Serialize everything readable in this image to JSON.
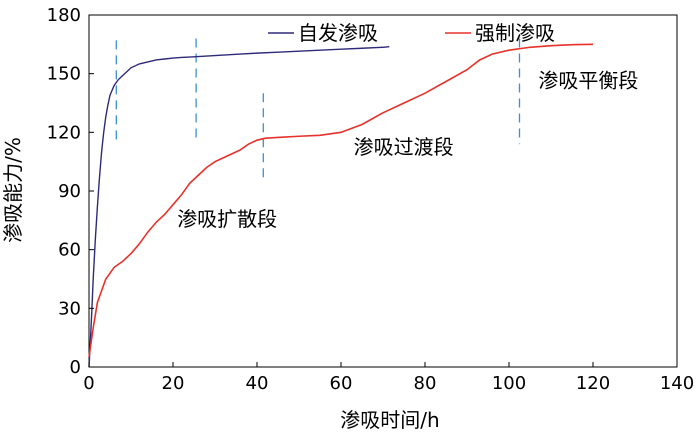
{
  "chart_data": {
    "type": "line",
    "title": "",
    "xlabel": "渗吸时间/h",
    "ylabel": "渗吸能力/%",
    "xlim": [
      0,
      140
    ],
    "ylim": [
      0,
      180
    ],
    "x_ticks": [
      "0",
      "20",
      "40",
      "60",
      "80",
      "100",
      "120",
      "140"
    ],
    "y_ticks": [
      "0",
      "30",
      "60",
      "90",
      "120",
      "150",
      "180"
    ],
    "grid": false,
    "legend_position": "top",
    "series": [
      {
        "name": "自发渗吸",
        "color": "#2e2a7a",
        "points": [
          [
            0,
            0
          ],
          [
            0.3,
            12
          ],
          [
            0.7,
            30
          ],
          [
            1,
            45
          ],
          [
            1.5,
            65
          ],
          [
            2,
            82
          ],
          [
            2.5,
            97
          ],
          [
            3,
            110
          ],
          [
            3.5,
            120
          ],
          [
            4,
            128
          ],
          [
            4.5,
            134
          ],
          [
            5,
            139
          ],
          [
            6,
            144
          ],
          [
            7,
            147
          ],
          [
            8,
            149
          ],
          [
            9,
            151
          ],
          [
            10,
            153
          ],
          [
            12,
            155
          ],
          [
            14,
            156
          ],
          [
            16,
            157
          ],
          [
            18,
            157.5
          ],
          [
            20,
            158
          ],
          [
            22,
            158.3
          ],
          [
            25,
            158.6
          ],
          [
            28,
            159
          ],
          [
            32,
            159.5
          ],
          [
            36,
            160
          ],
          [
            40,
            160.5
          ],
          [
            45,
            161
          ],
          [
            50,
            161.5
          ],
          [
            55,
            162
          ],
          [
            60,
            162.5
          ],
          [
            65,
            163
          ],
          [
            70,
            163.5
          ],
          [
            71.5,
            163.8
          ]
        ]
      },
      {
        "name": "强制渗吸",
        "color": "#e8312a",
        "points": [
          [
            0,
            5
          ],
          [
            1,
            20
          ],
          [
            2,
            33
          ],
          [
            4,
            45
          ],
          [
            6,
            51
          ],
          [
            8,
            54
          ],
          [
            10,
            58
          ],
          [
            12,
            63
          ],
          [
            14,
            69
          ],
          [
            16,
            74
          ],
          [
            18,
            78
          ],
          [
            20,
            83
          ],
          [
            22,
            88
          ],
          [
            24,
            94
          ],
          [
            26,
            98
          ],
          [
            28,
            102
          ],
          [
            30,
            105
          ],
          [
            32,
            107
          ],
          [
            34,
            109
          ],
          [
            36,
            111
          ],
          [
            38,
            114
          ],
          [
            40,
            116
          ],
          [
            42,
            117
          ],
          [
            46,
            117.5
          ],
          [
            50,
            118
          ],
          [
            55,
            118.5
          ],
          [
            60,
            120
          ],
          [
            65,
            124
          ],
          [
            70,
            130
          ],
          [
            75,
            135
          ],
          [
            80,
            140
          ],
          [
            85,
            146
          ],
          [
            90,
            152
          ],
          [
            93,
            157
          ],
          [
            96,
            160
          ],
          [
            100,
            162
          ],
          [
            105,
            163.5
          ],
          [
            110,
            164.3
          ],
          [
            115,
            164.8
          ],
          [
            120,
            165
          ]
        ]
      }
    ],
    "stage_dividers": [
      6.5,
      25.5,
      41.5,
      102.5
    ],
    "annotations": [
      {
        "text": "渗吸扩散段",
        "x": 21,
        "y": 72
      },
      {
        "text": "渗吸过渡段",
        "x": 63,
        "y": 109
      },
      {
        "text": "渗吸平衡段",
        "x": 107,
        "y": 143
      }
    ]
  }
}
